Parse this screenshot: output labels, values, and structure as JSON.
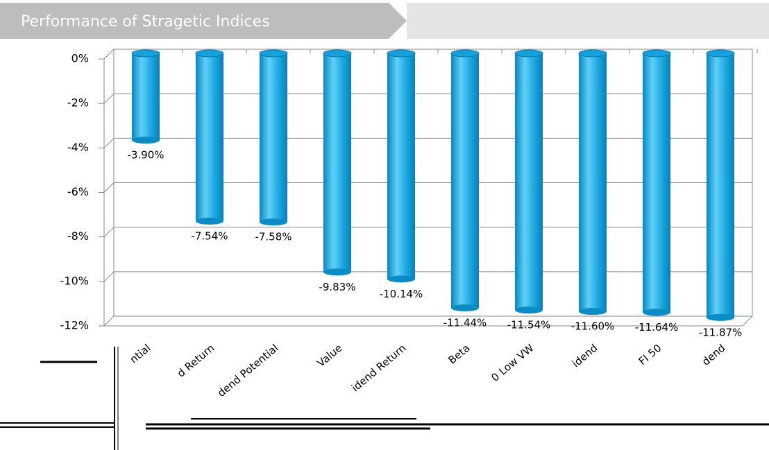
{
  "chart_data": {
    "type": "bar",
    "title": "Performance of Stragetic Indices",
    "categories": [
      "ntial",
      "d Return",
      "dend Potential",
      "Value",
      "idend Return",
      "Beta",
      "0 Low VW",
      "idend",
      "FI 50",
      "dend"
    ],
    "values": [
      -3.9,
      -7.54,
      -7.58,
      -9.83,
      -10.14,
      -11.44,
      -11.54,
      -11.6,
      -11.64,
      -11.87
    ],
    "value_labels": [
      "-3.90%",
      "-7.54%",
      "-7.58%",
      "-9.83%",
      "-10.14%",
      "-11.44%",
      "-11.54%",
      "-11.60%",
      "-11.64%",
      "-11.87%"
    ],
    "color": "#1aa7e0",
    "ylim": [
      -12,
      0
    ],
    "yticks": [
      {
        "value": 0,
        "label": "0%"
      },
      {
        "value": -2,
        "label": "-2%"
      },
      {
        "value": -4,
        "label": "-4%"
      },
      {
        "value": -6,
        "label": "-6%"
      },
      {
        "value": -8,
        "label": "-8%"
      },
      {
        "value": -10,
        "label": "-10%"
      },
      {
        "value": -12,
        "label": "-12%"
      }
    ],
    "grid": true
  }
}
